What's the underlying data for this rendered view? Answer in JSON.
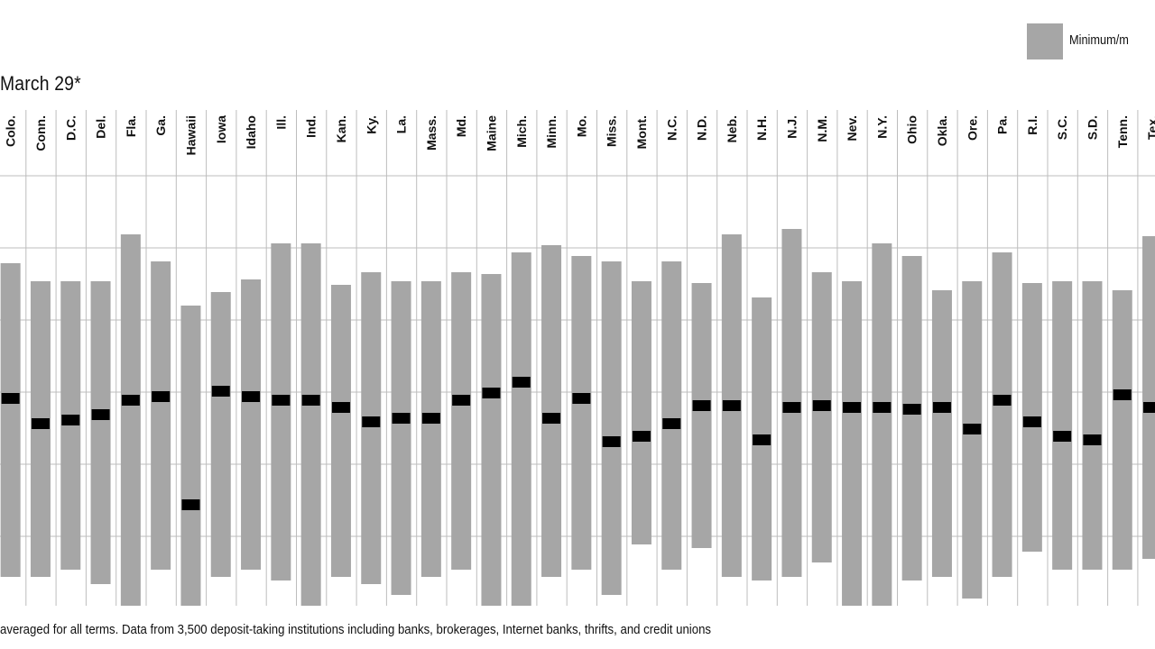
{
  "header": {
    "date_label": "March 29*",
    "legend_label": "Minimum/m"
  },
  "footnote": "averaged for all terms. Data from 3,500 deposit-taking institutions including banks, brokerages, Internet banks, thrifts, and credit unions",
  "colors": {
    "range_bar": "#a6a6a6",
    "average_marker": "#000000",
    "grid": "#bdbdbd"
  },
  "chart_data": {
    "type": "bar",
    "title": "",
    "xlabel": "",
    "ylabel": "",
    "grid": true,
    "legend_position": "top-right",
    "ylim": [
      0,
      450
    ],
    "categories": [
      "Colo.",
      "Conn.",
      "D.C.",
      "Del.",
      "Fla.",
      "Ga.",
      "Hawaii",
      "Iowa",
      "Idaho",
      "Ill.",
      "Ind.",
      "Kan.",
      "Ky.",
      "La.",
      "Mass.",
      "Md.",
      "Maine",
      "Mich.",
      "Minn.",
      "Mo.",
      "Miss.",
      "Mont.",
      "N.C.",
      "N.D.",
      "Neb.",
      "N.H.",
      "N.J.",
      "N.M.",
      "Nev.",
      "N.Y.",
      "Ohio",
      "Okla.",
      "Ore.",
      "Pa.",
      "R.I.",
      "S.C.",
      "S.D.",
      "Tenn.",
      "Tex."
    ],
    "series": [
      {
        "name": "Minimum/m",
        "min": [
          32,
          32,
          40,
          24,
          0,
          40,
          0,
          32,
          40,
          28,
          0,
          32,
          24,
          12,
          32,
          40,
          0,
          0,
          32,
          40,
          12,
          68,
          40,
          64,
          32,
          28,
          32,
          48,
          0,
          0,
          28,
          32,
          8,
          32,
          60,
          40,
          40,
          40,
          52
        ],
        "max": [
          380,
          360,
          360,
          360,
          412,
          382,
          333,
          348,
          362,
          402,
          402,
          356,
          370,
          360,
          360,
          370,
          368,
          392,
          400,
          388,
          382,
          360,
          382,
          358,
          412,
          342,
          418,
          370,
          360,
          402,
          388,
          350,
          360,
          392,
          358,
          360,
          360,
          350,
          410
        ]
      },
      {
        "name": "Average",
        "values": [
          230,
          202,
          206,
          212,
          228,
          232,
          112,
          238,
          232,
          228,
          228,
          220,
          204,
          208,
          208,
          228,
          236,
          248,
          208,
          230,
          182,
          188,
          202,
          222,
          222,
          184,
          220,
          222,
          220,
          220,
          218,
          220,
          196,
          228,
          204,
          188,
          184,
          234,
          220
        ]
      }
    ]
  }
}
